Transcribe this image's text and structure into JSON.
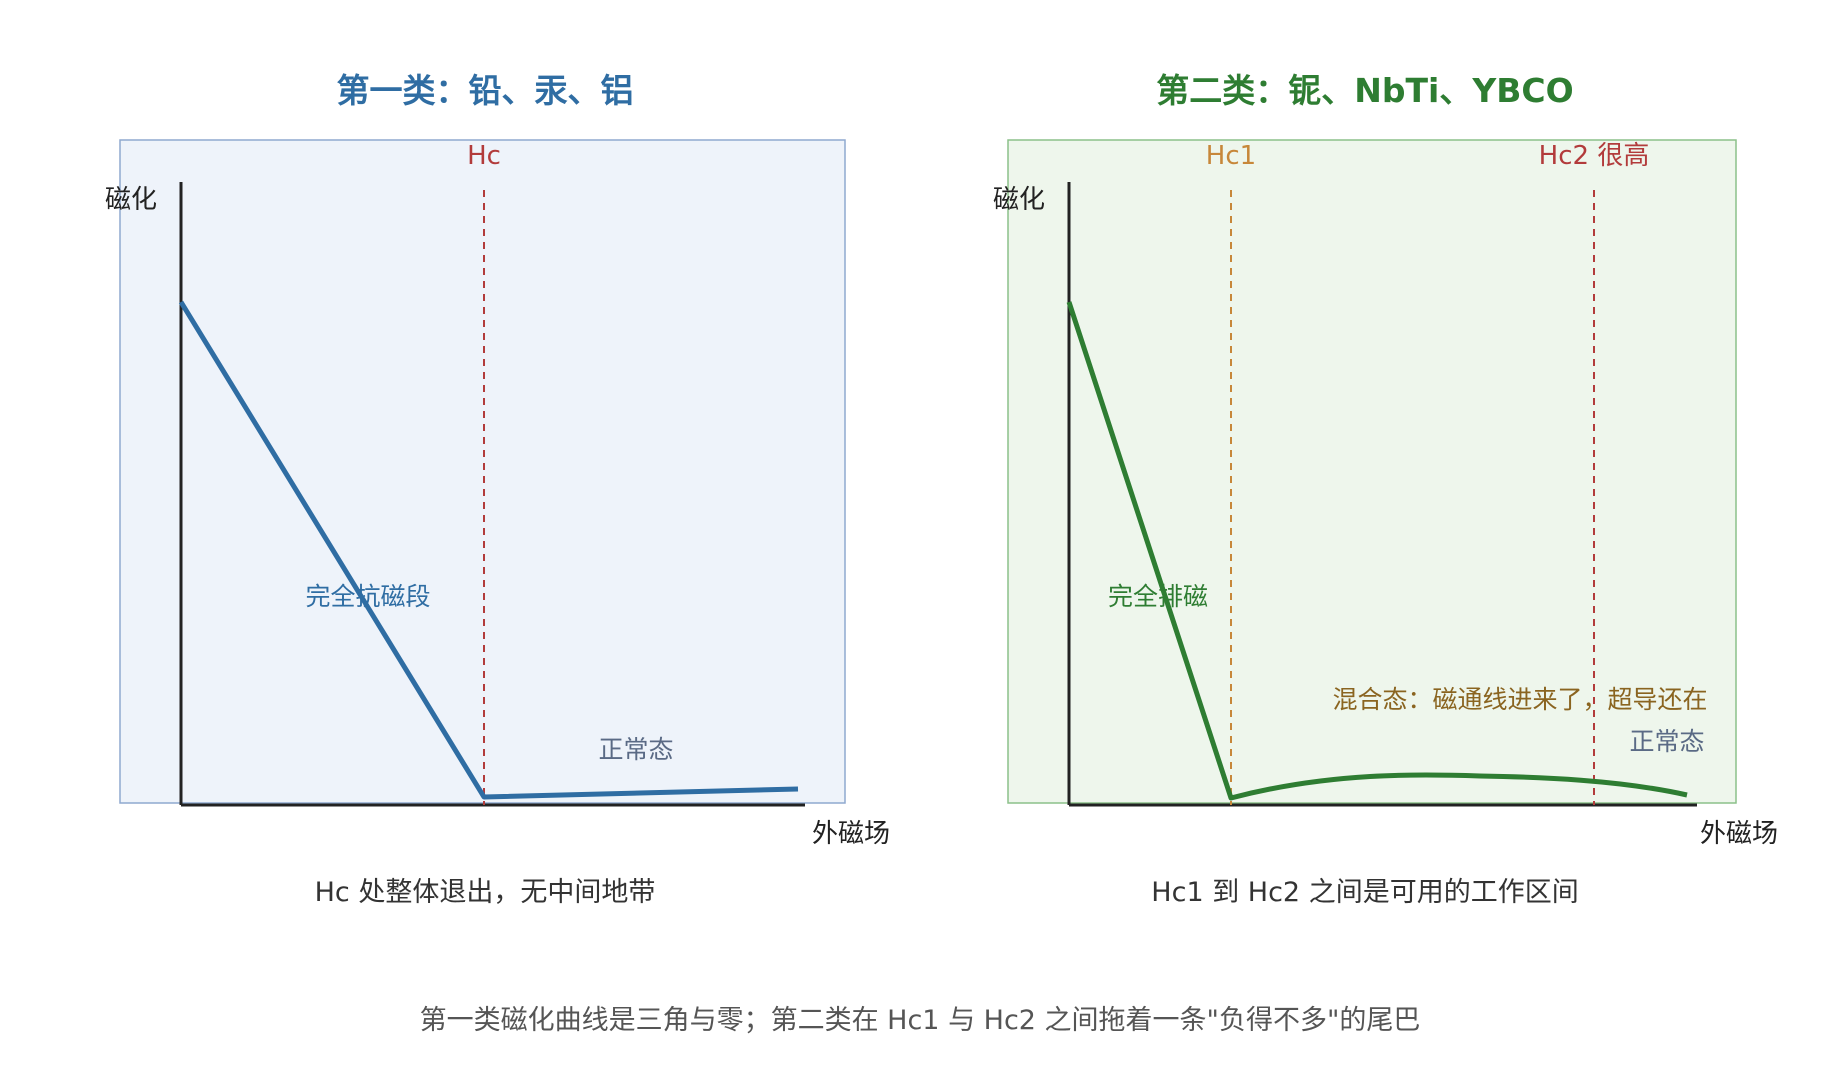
{
  "panel1": {
    "title": "第一类：铅、汞、铝",
    "y_label": "磁化",
    "x_label": "外磁场",
    "marker_label": "Hc",
    "region_meissner": "完全抗磁段",
    "region_normal": "正常态",
    "caption": "Hc 处整体退出，无中间地带",
    "colors": {
      "curve": "#2f6da3",
      "fill": "#eef3fa",
      "border": "#8fa9cf",
      "marker": "#b23b3b"
    }
  },
  "panel2": {
    "title": "第二类：铌、NbTi、YBCO",
    "y_label": "磁化",
    "x_label": "外磁场",
    "marker1_label": "Hc1",
    "marker2_label": "Hc2 很高",
    "region_meissner": "完全排磁",
    "region_mixed": "混合态：磁通线进来了，超导还在",
    "region_normal": "正常态",
    "caption": "Hc1 到 Hc2 之间是可用的工作区间",
    "colors": {
      "curve": "#2e7d32",
      "fill": "#eef6ec",
      "border": "#8cc18a",
      "marker1": "#c7873a",
      "marker2": "#b23b3b",
      "mixed_text": "#8a6420"
    }
  },
  "footer": "第一类磁化曲线是三角与零；第二类在 Hc1 与 Hc2 之间拖着一条\"负得不多\"的尾巴"
}
